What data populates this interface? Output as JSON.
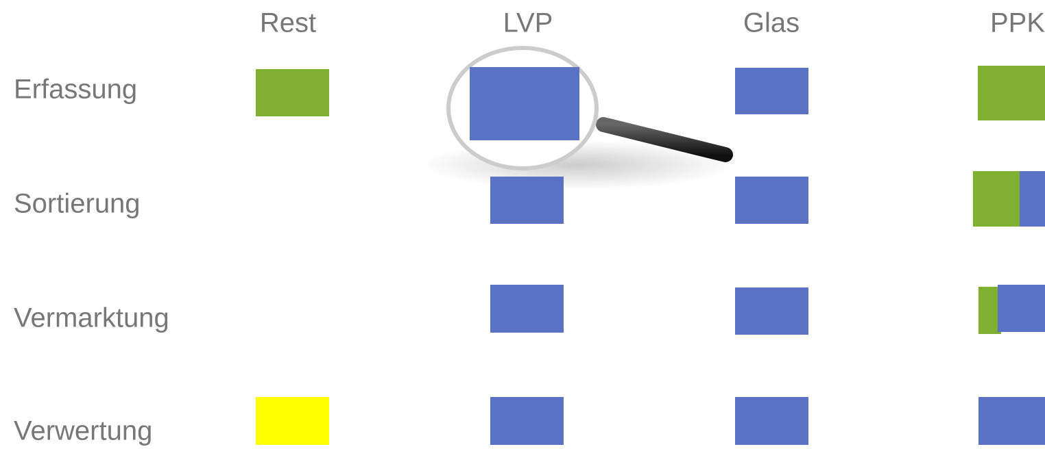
{
  "columns": [
    "Rest",
    "LVP",
    "Glas",
    "PPK"
  ],
  "rows": [
    "Erfassung",
    "Sortierung",
    "Vermarktung",
    "Verwertung"
  ]
}
